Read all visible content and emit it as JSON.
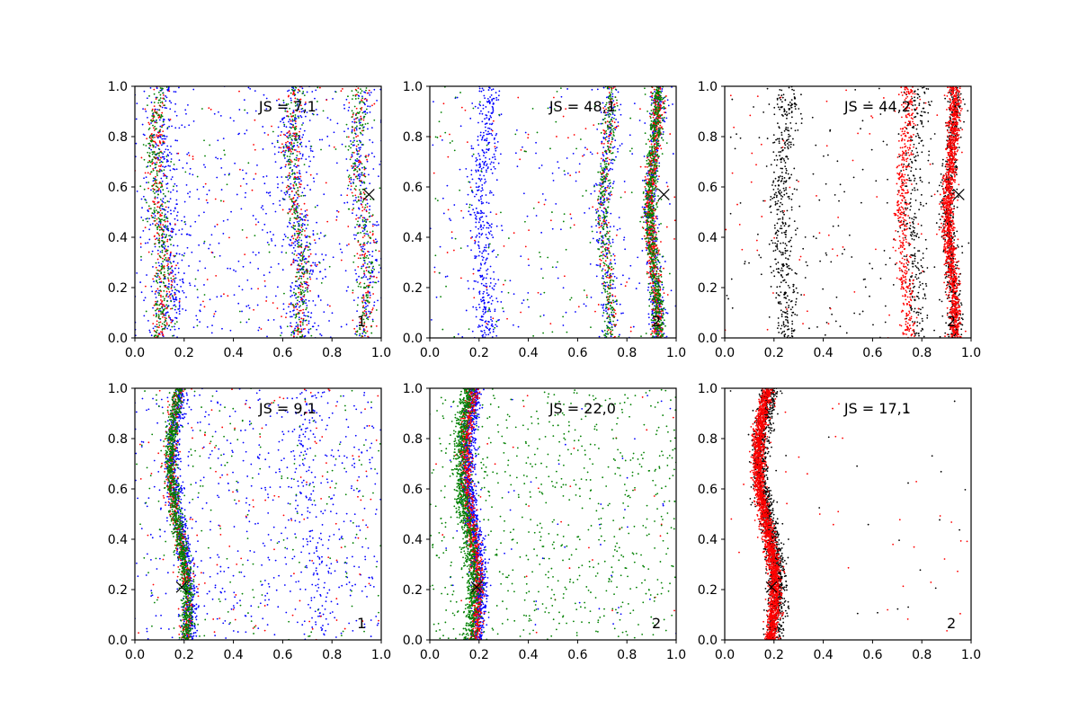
{
  "chart_data": [
    {
      "type": "scatter",
      "title": "JS = 7,1",
      "panel_label": "1",
      "xlim": [
        0,
        1
      ],
      "ylim": [
        0,
        1
      ],
      "xticks": [
        "0.0",
        "0.2",
        "0.4",
        "0.6",
        "0.8",
        "1.0"
      ],
      "yticks": [
        "0.0",
        "0.2",
        "0.4",
        "0.6",
        "0.8",
        "1.0"
      ],
      "marker": {
        "x": 0.95,
        "y": 0.57
      },
      "series": [
        {
          "color": "#0000ff",
          "count": 1400,
          "bands": [
            {
              "center": 0.13,
              "width": 0.07,
              "weight": 0.25
            },
            {
              "center": 0.66,
              "width": 0.07,
              "weight": 0.25
            },
            {
              "center": 0.93,
              "width": 0.05,
              "weight": 0.15
            }
          ],
          "uniform": 0.35
        },
        {
          "color": "#ff0000",
          "count": 700,
          "bands": [
            {
              "center": 0.1,
              "width": 0.04,
              "weight": 0.35
            },
            {
              "center": 0.66,
              "width": 0.04,
              "weight": 0.3
            },
            {
              "center": 0.92,
              "width": 0.04,
              "weight": 0.2
            }
          ],
          "uniform": 0.15
        },
        {
          "color": "#008000",
          "count": 900,
          "bands": [
            {
              "center": 0.1,
              "width": 0.04,
              "weight": 0.35
            },
            {
              "center": 0.66,
              "width": 0.04,
              "weight": 0.3
            },
            {
              "center": 0.92,
              "width": 0.04,
              "weight": 0.25
            }
          ],
          "uniform": 0.1
        }
      ]
    },
    {
      "type": "scatter",
      "title": "JS = 48,1",
      "panel_label": "2",
      "xlim": [
        0,
        1
      ],
      "ylim": [
        0,
        1
      ],
      "xticks": [
        "0.0",
        "0.2",
        "0.4",
        "0.6",
        "0.8",
        "1.0"
      ],
      "yticks": [
        "0.0",
        "0.2",
        "0.4",
        "0.6",
        "0.8",
        "1.0"
      ],
      "marker": {
        "x": 0.95,
        "y": 0.57
      },
      "series": [
        {
          "color": "#0000ff",
          "count": 1300,
          "bands": [
            {
              "center": 0.22,
              "width": 0.05,
              "weight": 0.35
            },
            {
              "center": 0.72,
              "width": 0.04,
              "weight": 0.2
            },
            {
              "center": 0.91,
              "width": 0.03,
              "weight": 0.3
            }
          ],
          "uniform": 0.15
        },
        {
          "color": "#ff0000",
          "count": 900,
          "bands": [
            {
              "center": 0.91,
              "width": 0.025,
              "weight": 0.75
            },
            {
              "center": 0.72,
              "width": 0.03,
              "weight": 0.15
            }
          ],
          "uniform": 0.1
        },
        {
          "color": "#008000",
          "count": 1200,
          "bands": [
            {
              "center": 0.91,
              "width": 0.025,
              "weight": 0.65
            },
            {
              "center": 0.72,
              "width": 0.03,
              "weight": 0.25
            }
          ],
          "uniform": 0.1
        }
      ]
    },
    {
      "type": "scatter",
      "title": "JS = 44,2",
      "panel_label": "2",
      "xlim": [
        0,
        1
      ],
      "ylim": [
        0,
        1
      ],
      "xticks": [
        "0.0",
        "0.2",
        "0.4",
        "0.6",
        "0.8",
        "1.0"
      ],
      "yticks": [
        "0.0",
        "0.2",
        "0.4",
        "0.6",
        "0.8",
        "1.0"
      ],
      "marker": {
        "x": 0.95,
        "y": 0.57
      },
      "series": [
        {
          "color": "#000000",
          "count": 1500,
          "bands": [
            {
              "center": 0.24,
              "width": 0.05,
              "weight": 0.3
            },
            {
              "center": 0.77,
              "width": 0.05,
              "weight": 0.2
            },
            {
              "center": 0.92,
              "width": 0.03,
              "weight": 0.4
            }
          ],
          "uniform": 0.1
        },
        {
          "color": "#ff0000",
          "count": 1800,
          "bands": [
            {
              "center": 0.92,
              "width": 0.025,
              "weight": 0.7
            },
            {
              "center": 0.73,
              "width": 0.03,
              "weight": 0.25
            }
          ],
          "uniform": 0.05
        }
      ]
    },
    {
      "type": "scatter",
      "title": "JS = 9,1",
      "panel_label": "1",
      "xlim": [
        0,
        1
      ],
      "ylim": [
        0,
        1
      ],
      "xticks": [
        "0.0",
        "0.2",
        "0.4",
        "0.6",
        "0.8",
        "1.0"
      ],
      "yticks": [
        "0.0",
        "0.2",
        "0.4",
        "0.6",
        "0.8",
        "1.0"
      ],
      "marker": {
        "x": 0.19,
        "y": 0.21
      },
      "series": [
        {
          "color": "#0000ff",
          "count": 1500,
          "bands": [
            {
              "center": 0.19,
              "width": 0.03,
              "weight": 0.55
            },
            {
              "center": 0.72,
              "width": 0.06,
              "weight": 0.1
            }
          ],
          "uniform": 0.35
        },
        {
          "color": "#ff0000",
          "count": 600,
          "bands": [
            {
              "center": 0.18,
              "width": 0.025,
              "weight": 0.8
            }
          ],
          "uniform": 0.2
        },
        {
          "color": "#008000",
          "count": 1200,
          "bands": [
            {
              "center": 0.18,
              "width": 0.025,
              "weight": 0.85
            }
          ],
          "uniform": 0.15
        }
      ]
    },
    {
      "type": "scatter",
      "title": "JS = 22,0",
      "panel_label": "2",
      "xlim": [
        0,
        1
      ],
      "ylim": [
        0,
        1
      ],
      "xticks": [
        "0.0",
        "0.2",
        "0.4",
        "0.6",
        "0.8",
        "1.0"
      ],
      "yticks": [
        "0.0",
        "0.2",
        "0.4",
        "0.6",
        "0.8",
        "1.0"
      ],
      "marker": {
        "x": 0.19,
        "y": 0.21
      },
      "series": [
        {
          "color": "#0000ff",
          "count": 1200,
          "bands": [
            {
              "center": 0.18,
              "width": 0.03,
              "weight": 0.95
            }
          ],
          "uniform": 0.05
        },
        {
          "color": "#ff0000",
          "count": 900,
          "bands": [
            {
              "center": 0.17,
              "width": 0.025,
              "weight": 0.95
            }
          ],
          "uniform": 0.05
        },
        {
          "color": "#008000",
          "count": 1700,
          "bands": [
            {
              "center": 0.15,
              "width": 0.03,
              "weight": 0.6
            }
          ],
          "uniform": 0.4
        }
      ]
    },
    {
      "type": "scatter",
      "title": "JS = 17,1",
      "panel_label": "2",
      "xlim": [
        0,
        1
      ],
      "ylim": [
        0,
        1
      ],
      "xticks": [
        "0.0",
        "0.2",
        "0.4",
        "0.6",
        "0.8",
        "1.0"
      ],
      "yticks": [
        "0.0",
        "0.2",
        "0.4",
        "0.6",
        "0.8",
        "1.0"
      ],
      "marker": {
        "x": 0.19,
        "y": 0.21
      },
      "series": [
        {
          "color": "#000000",
          "count": 1500,
          "bands": [
            {
              "center": 0.18,
              "width": 0.035,
              "weight": 0.97
            }
          ],
          "uniform": 0.03
        },
        {
          "color": "#ff0000",
          "count": 2200,
          "bands": [
            {
              "center": 0.17,
              "width": 0.025,
              "weight": 0.98
            }
          ],
          "uniform": 0.02
        }
      ]
    }
  ]
}
